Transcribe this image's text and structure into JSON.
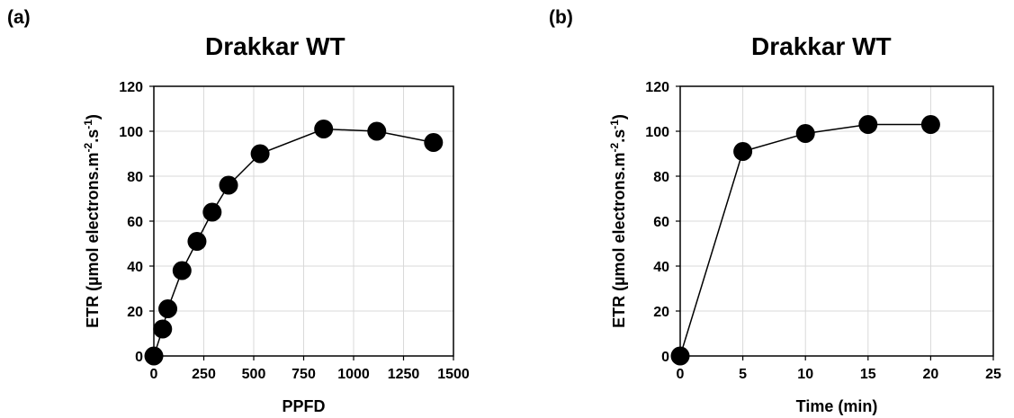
{
  "chart_data": [
    {
      "panel": "(a)",
      "type": "line",
      "title": "Drakkar WT",
      "xlabel": "PPFD",
      "ylabel": "ETR (µmol electrons.m",
      "ylabel_sup1": "-2",
      "ylabel_mid": ".s",
      "ylabel_sup2": "-1",
      "ylabel_end": ")",
      "xlim": [
        0,
        1500
      ],
      "ylim": [
        0,
        120
      ],
      "xticks": [
        0,
        250,
        500,
        750,
        1000,
        1250,
        1500
      ],
      "yticks": [
        0,
        20,
        40,
        60,
        80,
        100,
        120
      ],
      "grid": true,
      "series": [
        {
          "x": [
            0,
            44,
            70,
            141,
            216,
            292,
            374,
            532,
            850,
            1116,
            1400
          ],
          "y": [
            0,
            12,
            21,
            38,
            51,
            64,
            76,
            90,
            101,
            100,
            95
          ],
          "color": "#000000"
        }
      ]
    },
    {
      "panel": "(b)",
      "type": "line",
      "title": "Drakkar WT",
      "xlabel": "Time (min)",
      "ylabel": "ETR (µmol electrons.m",
      "ylabel_sup1": "-2",
      "ylabel_mid": ".s",
      "ylabel_sup2": "-1",
      "ylabel_end": ")",
      "xlim": [
        0,
        25
      ],
      "ylim": [
        0,
        120
      ],
      "xticks": [
        0,
        5,
        10,
        15,
        20,
        25
      ],
      "yticks": [
        0,
        20,
        40,
        60,
        80,
        100,
        120
      ],
      "grid": true,
      "series": [
        {
          "x": [
            0,
            5,
            10,
            15,
            20
          ],
          "y": [
            0,
            91,
            99,
            103,
            103
          ],
          "color": "#000000"
        }
      ]
    }
  ]
}
